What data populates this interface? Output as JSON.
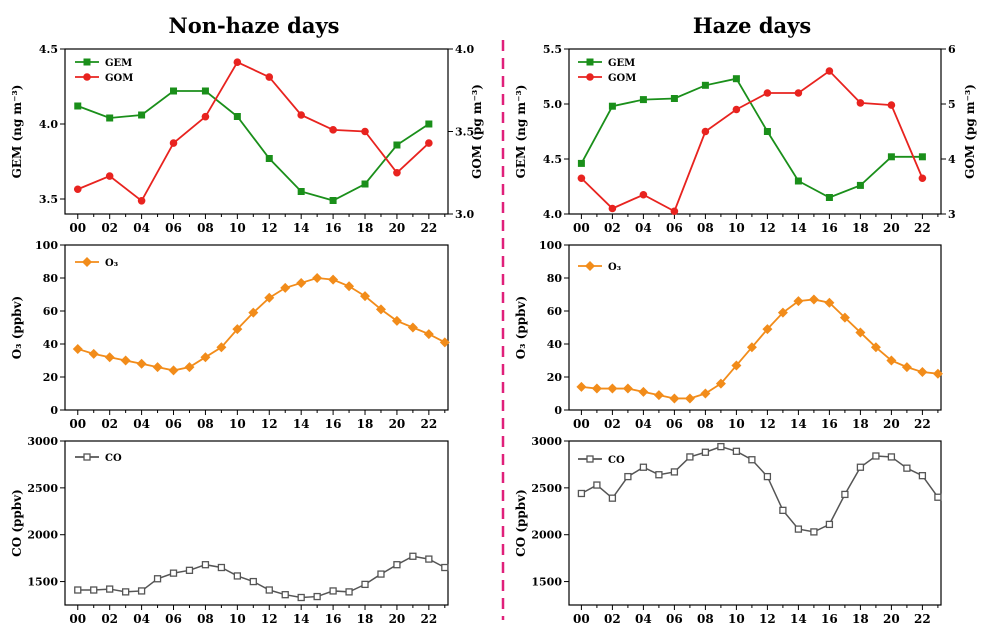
{
  "colors": {
    "gem": "#1a8f1a",
    "gom": "#e8231f",
    "o3": "#f28c1a",
    "co": "#555555",
    "divider": "#e0207a"
  },
  "chart_data": [
    {
      "id": "nonhaze-mercury",
      "type": "line",
      "title": "Non-haze days",
      "x": [
        0,
        1,
        2,
        3,
        4,
        5,
        6,
        7,
        8,
        9,
        10,
        11,
        12,
        13,
        14,
        15,
        16,
        17,
        18,
        19,
        20,
        21,
        22,
        23
      ],
      "xticks": [
        "00",
        "02",
        "04",
        "06",
        "08",
        "10",
        "12",
        "14",
        "16",
        "18",
        "20",
        "22"
      ],
      "ylabel": "GEM (ng m⁻³)",
      "ylim": [
        3.4,
        4.5
      ],
      "yticks": [
        "3.5",
        "4.0",
        "4.5"
      ],
      "y2label": "GOM (pg m⁻³)",
      "y2lim": [
        3.0,
        4.0
      ],
      "y2ticks": [
        "3.0",
        "3.5",
        "4.0"
      ],
      "series": [
        {
          "name": "GEM",
          "axis": "left",
          "marker": "square",
          "x": [
            0,
            2,
            4,
            6,
            8,
            10,
            12,
            14,
            16,
            18,
            20,
            22
          ],
          "values": [
            4.12,
            4.04,
            4.06,
            4.22,
            4.22,
            4.05,
            3.77,
            3.55,
            3.49,
            3.6,
            3.86,
            4.0
          ]
        },
        {
          "name": "GOM",
          "axis": "right",
          "marker": "circle",
          "x": [
            0,
            2,
            4,
            6,
            8,
            10,
            12,
            14,
            16,
            18,
            20,
            22
          ],
          "values": [
            3.15,
            3.23,
            3.08,
            3.43,
            3.59,
            3.92,
            3.83,
            3.6,
            3.51,
            3.5,
            3.25,
            3.43
          ]
        }
      ]
    },
    {
      "id": "haze-mercury",
      "type": "line",
      "title": "Haze days",
      "x": [
        0,
        1,
        2,
        3,
        4,
        5,
        6,
        7,
        8,
        9,
        10,
        11,
        12,
        13,
        14,
        15,
        16,
        17,
        18,
        19,
        20,
        21,
        22,
        23
      ],
      "xticks": [
        "00",
        "02",
        "04",
        "06",
        "08",
        "10",
        "12",
        "14",
        "16",
        "18",
        "20",
        "22"
      ],
      "ylabel": "GEM (ng m⁻³)",
      "ylim": [
        4.0,
        5.5
      ],
      "yticks": [
        "4.0",
        "4.5",
        "5.0",
        "5.5"
      ],
      "y2label": "GOM (pg m⁻³)",
      "y2lim": [
        3,
        6
      ],
      "y2ticks": [
        "3",
        "4",
        "5",
        "6"
      ],
      "series": [
        {
          "name": "GEM",
          "axis": "left",
          "marker": "square",
          "x": [
            0,
            2,
            4,
            6,
            8,
            10,
            12,
            14,
            16,
            18,
            20,
            22
          ],
          "values": [
            4.46,
            4.98,
            5.04,
            5.05,
            5.17,
            5.23,
            4.75,
            4.3,
            4.15,
            4.26,
            4.52,
            4.52
          ]
        },
        {
          "name": "GOM",
          "axis": "right",
          "marker": "circle",
          "x": [
            0,
            2,
            4,
            6,
            8,
            10,
            12,
            14,
            16,
            18,
            20,
            22
          ],
          "values": [
            3.65,
            3.1,
            3.35,
            3.05,
            4.5,
            4.9,
            5.2,
            5.2,
            5.6,
            5.02,
            4.98,
            3.65
          ]
        }
      ]
    },
    {
      "id": "nonhaze-o3",
      "type": "line",
      "title": "",
      "x": [
        0,
        1,
        2,
        3,
        4,
        5,
        6,
        7,
        8,
        9,
        10,
        11,
        12,
        13,
        14,
        15,
        16,
        17,
        18,
        19,
        20,
        21,
        22,
        23
      ],
      "xticks": [
        "00",
        "02",
        "04",
        "06",
        "08",
        "10",
        "12",
        "14",
        "16",
        "18",
        "20",
        "22"
      ],
      "ylabel": "O₃ (ppbv)",
      "ylim": [
        0,
        100
      ],
      "yticks": [
        "0",
        "20",
        "40",
        "60",
        "80",
        "100"
      ],
      "series": [
        {
          "name": "O₃",
          "marker": "diamond",
          "x": [
            0,
            1,
            2,
            3,
            4,
            5,
            6,
            7,
            8,
            9,
            10,
            11,
            12,
            13,
            14,
            15,
            16,
            17,
            18,
            19,
            20,
            21,
            22,
            23
          ],
          "values": [
            37,
            34,
            32,
            30,
            28,
            26,
            24,
            26,
            32,
            38,
            49,
            59,
            68,
            74,
            77,
            80,
            79,
            75,
            69,
            61,
            54,
            50,
            46,
            41
          ]
        }
      ]
    },
    {
      "id": "haze-o3",
      "type": "line",
      "title": "",
      "x": [
        0,
        1,
        2,
        3,
        4,
        5,
        6,
        7,
        8,
        9,
        10,
        11,
        12,
        13,
        14,
        15,
        16,
        17,
        18,
        19,
        20,
        21,
        22,
        23
      ],
      "xticks": [
        "00",
        "02",
        "04",
        "06",
        "08",
        "10",
        "12",
        "14",
        "16",
        "18",
        "20",
        "22"
      ],
      "ylabel": "O₃ (ppbv)",
      "ylim": [
        0,
        100
      ],
      "yticks": [
        "0",
        "20",
        "40",
        "60",
        "80",
        "100"
      ],
      "series": [
        {
          "name": "O₃",
          "marker": "diamond",
          "x": [
            0,
            1,
            2,
            3,
            4,
            5,
            6,
            7,
            8,
            9,
            10,
            11,
            12,
            13,
            14,
            15,
            16,
            17,
            18,
            19,
            20,
            21,
            22,
            23
          ],
          "values": [
            14,
            13,
            13,
            13,
            11,
            9,
            7,
            7,
            10,
            16,
            27,
            38,
            49,
            59,
            66,
            67,
            65,
            56,
            47,
            38,
            30,
            26,
            23,
            22
          ]
        }
      ]
    },
    {
      "id": "nonhaze-co",
      "type": "line",
      "title": "",
      "x": [
        0,
        1,
        2,
        3,
        4,
        5,
        6,
        7,
        8,
        9,
        10,
        11,
        12,
        13,
        14,
        15,
        16,
        17,
        18,
        19,
        20,
        21,
        22,
        23
      ],
      "xticks": [
        "00",
        "02",
        "04",
        "06",
        "08",
        "10",
        "12",
        "14",
        "16",
        "18",
        "20",
        "22"
      ],
      "ylabel": "CO (ppbv)",
      "ylim": [
        1250,
        3000
      ],
      "yticks": [
        "1500",
        "2000",
        "2500",
        "3000"
      ],
      "series": [
        {
          "name": "CO",
          "marker": "open-square",
          "x": [
            0,
            1,
            2,
            3,
            4,
            5,
            6,
            7,
            8,
            9,
            10,
            11,
            12,
            13,
            14,
            15,
            16,
            17,
            18,
            19,
            20,
            21,
            22,
            23
          ],
          "values": [
            1410,
            1410,
            1420,
            1390,
            1400,
            1530,
            1590,
            1620,
            1680,
            1650,
            1560,
            1500,
            1410,
            1360,
            1330,
            1340,
            1400,
            1390,
            1470,
            1580,
            1680,
            1770,
            1740,
            1650
          ]
        }
      ]
    },
    {
      "id": "haze-co",
      "type": "line",
      "title": "",
      "x": [
        0,
        1,
        2,
        3,
        4,
        5,
        6,
        7,
        8,
        9,
        10,
        11,
        12,
        13,
        14,
        15,
        16,
        17,
        18,
        19,
        20,
        21,
        22,
        23
      ],
      "xticks": [
        "00",
        "02",
        "04",
        "06",
        "08",
        "10",
        "12",
        "14",
        "16",
        "18",
        "20",
        "22"
      ],
      "ylabel": "CO (ppbv)",
      "ylim": [
        1250,
        3000
      ],
      "yticks": [
        "1500",
        "2000",
        "2500",
        "3000"
      ],
      "series": [
        {
          "name": "CO",
          "marker": "open-square",
          "x": [
            0,
            1,
            2,
            3,
            4,
            5,
            6,
            7,
            8,
            9,
            10,
            11,
            12,
            13,
            14,
            15,
            16,
            17,
            18,
            19,
            20,
            21,
            22,
            23
          ],
          "values": [
            2440,
            2530,
            2390,
            2620,
            2720,
            2640,
            2670,
            2830,
            2880,
            2940,
            2890,
            2800,
            2620,
            2260,
            2060,
            2030,
            2110,
            2430,
            2720,
            2840,
            2830,
            2710,
            2630,
            2400
          ]
        }
      ]
    }
  ]
}
